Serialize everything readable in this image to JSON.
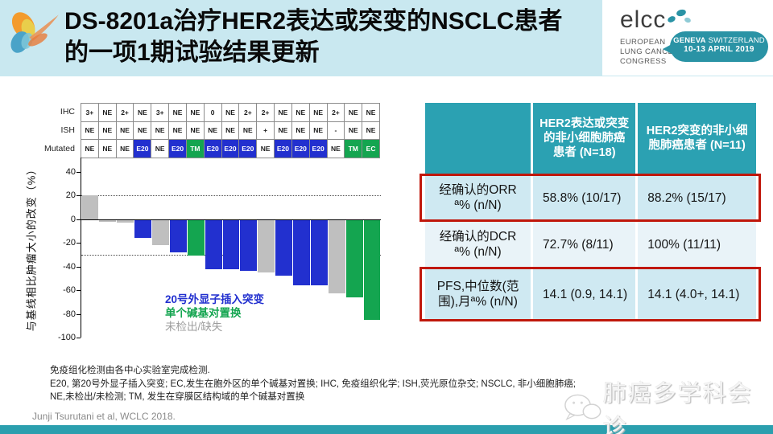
{
  "header": {
    "title_line1": "DS-8201a治疗HER2表达或突变的NSCLC患者",
    "title_line2": "的一项1期试验结果更新",
    "logo": {
      "wordmark": "elcc",
      "org_lines": "EUROPEAN\nLUNG CANCER\nCONGRESS",
      "event_city": "GENEVA",
      "event_country": " SWITZERLAND",
      "event_dates": "10-13 APRIL 2019"
    }
  },
  "chart_data": {
    "type": "bar",
    "title": "",
    "ylabel": "与基线相比肿瘤大小的改变（%）",
    "ylim": [
      -100,
      52
    ],
    "yticks": [
      40,
      20,
      0,
      -20,
      -40,
      -60,
      -80,
      -100
    ],
    "reference_lines": [
      20,
      -30
    ],
    "grid": false,
    "annotation_rows": [
      {
        "label": "IHC",
        "values": [
          "3+",
          "NE",
          "2+",
          "NE",
          "3+",
          "NE",
          "NE",
          "0",
          "NE",
          "2+",
          "2+",
          "NE",
          "NE",
          "NE",
          "2+",
          "NE",
          "NE"
        ]
      },
      {
        "label": "ISH",
        "values": [
          "NE",
          "NE",
          "NE",
          "NE",
          "NE",
          "NE",
          "NE",
          "NE",
          "NE",
          "NE",
          "+",
          "NE",
          "NE",
          "NE",
          "-",
          "NE",
          "NE"
        ]
      },
      {
        "label": "Mutated",
        "values": [
          "NE",
          "NE",
          "NE",
          "E20",
          "NE",
          "E20",
          "TM",
          "E20",
          "E20",
          "E20",
          "NE",
          "E20",
          "E20",
          "E20",
          "NE",
          "TM",
          "EC"
        ]
      }
    ],
    "bars": [
      {
        "value": 20,
        "type": "ND"
      },
      {
        "value": -2,
        "type": "ND"
      },
      {
        "value": -3,
        "type": "ND"
      },
      {
        "value": -16,
        "type": "E20"
      },
      {
        "value": -22,
        "type": "ND"
      },
      {
        "value": -28,
        "type": "E20"
      },
      {
        "value": -31,
        "type": "SUB"
      },
      {
        "value": -42,
        "type": "E20"
      },
      {
        "value": -42,
        "type": "E20"
      },
      {
        "value": -44,
        "type": "E20"
      },
      {
        "value": -45,
        "type": "ND"
      },
      {
        "value": -48,
        "type": "E20"
      },
      {
        "value": -56,
        "type": "E20"
      },
      {
        "value": -56,
        "type": "E20"
      },
      {
        "value": -63,
        "type": "ND"
      },
      {
        "value": -66,
        "type": "SUB"
      },
      {
        "value": -85,
        "type": "SUB"
      }
    ],
    "colors": {
      "E20": "#2230cf",
      "SUB": "#14a550",
      "ND": "#bfbfbf"
    },
    "legend": [
      {
        "label": "20号外显子插入突变",
        "color": "#2230cf",
        "bold": true
      },
      {
        "label": "单个碱基对置换",
        "color": "#14a550",
        "bold": true
      },
      {
        "label": "未检出/缺失",
        "color": "#9e9e9e",
        "bold": false
      }
    ],
    "legend_position": "inside-bottom"
  },
  "table": {
    "headers": [
      "",
      "HER2表达或突变的非小细胞肺癌患者 (N=18)",
      "HER2突变的非小细胞肺癌患者 (N=11)"
    ],
    "rows": [
      {
        "label": "经确认的ORR ª% (n/N)",
        "col1": "58.8% (10/17)",
        "col2": "88.2% (15/17)",
        "highlighted": true
      },
      {
        "label": "经确认的DCR ª% (n/N)",
        "col1": "72.7% (8/11)",
        "col2": "100% (11/11)",
        "highlighted": false
      },
      {
        "label": "PFS,中位数(范围),月ª% (n/N)",
        "col1": "14.1 (0.9, 14.1)",
        "col2": "14.1 (4.0+, 14.1)",
        "highlighted": true
      }
    ],
    "highlight_color": "#c0170b"
  },
  "footnotes": [
    "免疫组化检测由各中心实验室完成检测.",
    "E20, 第20号外显子插入突变;  EC,发生在胞外区的单个碱基对置换;  IHC, 免疫组织化学;  ISH,荧光原位杂交;  NSCLC, 非小细胞肺癌;",
    "NE,未检出/未检测;  TM, 发生在穿膜区结构域的单个碱基对置换"
  ],
  "watermark": "肺癌多学科会诊",
  "citation": "Junji Tsurutani et al, WCLC 2018.",
  "theme": {
    "header_bg": "#c9e8f0",
    "table_header_teal": "#2ba1b2",
    "row_cyan": "#cfe9f2",
    "row_light": "#e9f3f8",
    "bottom_bar_teal": "#2b9fae",
    "bubble_teal": "#2a93a5"
  }
}
